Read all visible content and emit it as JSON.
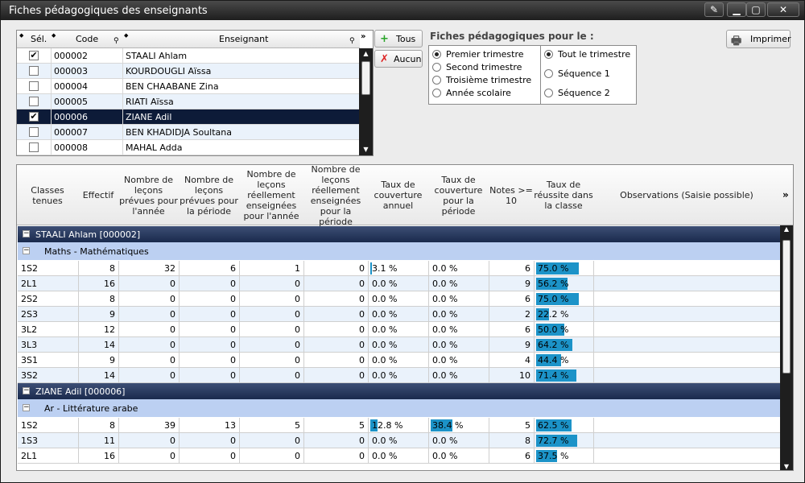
{
  "window": {
    "title": "Fiches pédagogiques des enseignants"
  },
  "teacher_grid": {
    "columns": {
      "sel": "Sél.",
      "code": "Code",
      "teacher": "Enseignant"
    },
    "rows": [
      {
        "checked": true,
        "code": "000002",
        "name": "STAALI Ahlam"
      },
      {
        "checked": false,
        "code": "000003",
        "name": "KOURDOUGLI Aïssa"
      },
      {
        "checked": false,
        "code": "000004",
        "name": "BEN CHAABANE Zina"
      },
      {
        "checked": false,
        "code": "000005",
        "name": "RIATI Aïssa"
      },
      {
        "checked": true,
        "code": "000006",
        "name": "ZIANE Adil",
        "selected": true
      },
      {
        "checked": false,
        "code": "000007",
        "name": "BEN KHADIDJA Soultana"
      },
      {
        "checked": false,
        "code": "000008",
        "name": "MAHAL Adda"
      }
    ]
  },
  "buttons": {
    "all": "Tous",
    "none": "Aucun",
    "print": "Imprimer"
  },
  "period": {
    "title": "Fiches pédagogiques pour le :",
    "terms": [
      {
        "label": "Premier trimestre",
        "checked": true
      },
      {
        "label": "Second trimestre",
        "checked": false
      },
      {
        "label": "Troisième trimestre",
        "checked": false
      },
      {
        "label": "Année scolaire",
        "checked": false
      }
    ],
    "scope": [
      {
        "label": "Tout le trimestre",
        "checked": true
      },
      {
        "label": "Séquence 1",
        "checked": false
      },
      {
        "label": "Séquence 2",
        "checked": false
      }
    ]
  },
  "main_grid": {
    "headers": [
      "Classes tenues",
      "Effectif",
      "Nombre de leçons prévues pour l'année",
      "Nombre de leçons prévues pour la période",
      "Nombre de leçons réellement enseignées pour l'année",
      "Nombre de leçons réellement enseignées pour la période",
      "Taux de couverture annuel",
      "Taux de couverture pour la période",
      "Notes >= 10",
      "Taux de réussite dans la classe",
      "Observations (Saisie possible)"
    ],
    "groups": [
      {
        "teacher": "STAALI Ahlam [000002]",
        "subject": "Maths - Mathématiques",
        "rows": [
          {
            "cls": "1S2",
            "eff": "8",
            "pa": "32",
            "pp": "6",
            "ra": "1",
            "rp": "0",
            "ta": "3.1 %",
            "ta_v": 3.1,
            "tp": "0.0 %",
            "tp_v": 0,
            "notes": "6",
            "tr": "75.0 %",
            "tr_v": 75.0
          },
          {
            "cls": "2L1",
            "eff": "16",
            "pa": "0",
            "pp": "0",
            "ra": "0",
            "rp": "0",
            "ta": "0.0 %",
            "ta_v": 0,
            "tp": "0.0 %",
            "tp_v": 0,
            "notes": "9",
            "tr": "56.2 %",
            "tr_v": 56.2
          },
          {
            "cls": "2S2",
            "eff": "8",
            "pa": "0",
            "pp": "0",
            "ra": "0",
            "rp": "0",
            "ta": "0.0 %",
            "ta_v": 0,
            "tp": "0.0 %",
            "tp_v": 0,
            "notes": "6",
            "tr": "75.0 %",
            "tr_v": 75.0
          },
          {
            "cls": "2S3",
            "eff": "9",
            "pa": "0",
            "pp": "0",
            "ra": "0",
            "rp": "0",
            "ta": "0.0 %",
            "ta_v": 0,
            "tp": "0.0 %",
            "tp_v": 0,
            "notes": "2",
            "tr": "22.2 %",
            "tr_v": 22.2
          },
          {
            "cls": "3L2",
            "eff": "12",
            "pa": "0",
            "pp": "0",
            "ra": "0",
            "rp": "0",
            "ta": "0.0 %",
            "ta_v": 0,
            "tp": "0.0 %",
            "tp_v": 0,
            "notes": "6",
            "tr": "50.0 %",
            "tr_v": 50.0
          },
          {
            "cls": "3L3",
            "eff": "14",
            "pa": "0",
            "pp": "0",
            "ra": "0",
            "rp": "0",
            "ta": "0.0 %",
            "ta_v": 0,
            "tp": "0.0 %",
            "tp_v": 0,
            "notes": "9",
            "tr": "64.2 %",
            "tr_v": 64.2
          },
          {
            "cls": "3S1",
            "eff": "9",
            "pa": "0",
            "pp": "0",
            "ra": "0",
            "rp": "0",
            "ta": "0.0 %",
            "ta_v": 0,
            "tp": "0.0 %",
            "tp_v": 0,
            "notes": "4",
            "tr": "44.4 %",
            "tr_v": 44.4
          },
          {
            "cls": "3S2",
            "eff": "14",
            "pa": "0",
            "pp": "0",
            "ra": "0",
            "rp": "0",
            "ta": "0.0 %",
            "ta_v": 0,
            "tp": "0.0 %",
            "tp_v": 0,
            "notes": "10",
            "tr": "71.4 %",
            "tr_v": 71.4
          }
        ]
      },
      {
        "teacher": "ZIANE Adil [000006]",
        "subject": "Ar - Littérature arabe",
        "rows": [
          {
            "cls": "1S2",
            "eff": "8",
            "pa": "39",
            "pp": "13",
            "ra": "5",
            "rp": "5",
            "ta": "12.8 %",
            "ta_v": 12.8,
            "tp": "38.4 %",
            "tp_v": 38.4,
            "notes": "5",
            "tr": "62.5 %",
            "tr_v": 62.5
          },
          {
            "cls": "1S3",
            "eff": "11",
            "pa": "0",
            "pp": "0",
            "ra": "0",
            "rp": "0",
            "ta": "0.0 %",
            "ta_v": 0,
            "tp": "0.0 %",
            "tp_v": 0,
            "notes": "8",
            "tr": "72.7 %",
            "tr_v": 72.7
          },
          {
            "cls": "2L1",
            "eff": "16",
            "pa": "0",
            "pp": "0",
            "ra": "0",
            "rp": "0",
            "ta": "0.0 %",
            "ta_v": 0,
            "tp": "0.0 %",
            "tp_v": 0,
            "notes": "6",
            "tr": "37.5 %",
            "tr_v": 37.5
          }
        ]
      }
    ]
  }
}
